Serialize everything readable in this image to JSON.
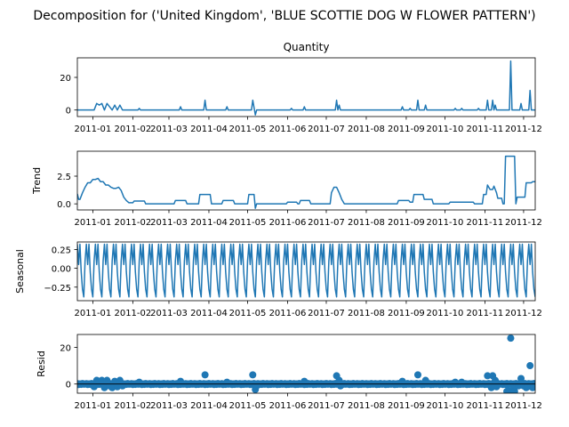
{
  "chart_data": {
    "type": "line",
    "suptitle": "Decomposition for ('United Kingdom', 'BLUE SCOTTIE DOG W FLOWER PATTERN')",
    "line_color": "#1f77b4",
    "x_ticks": [
      "2011-01",
      "2011-02",
      "2011-03",
      "2011-04",
      "2011-05",
      "2011-06",
      "2011-07",
      "2011-08",
      "2011-09",
      "2011-10",
      "2011-11",
      "2011-12"
    ],
    "x_domain": [
      "2010-12-20",
      "2011-12-10"
    ],
    "panels": [
      {
        "key": "observed",
        "title": "Quantity",
        "ylabel": "",
        "type": "line",
        "ylim": [
          -4,
          32
        ],
        "yticks": [
          {
            "v": 0,
            "label": "0"
          },
          {
            "v": 20,
            "label": "20"
          }
        ],
        "points": [
          [
            "2010-12-20",
            0
          ],
          [
            "2011-01-02",
            0
          ],
          [
            "2011-01-04",
            4
          ],
          [
            "2011-01-06",
            3
          ],
          [
            "2011-01-08",
            4
          ],
          [
            "2011-01-10",
            0
          ],
          [
            "2011-01-12",
            4
          ],
          [
            "2011-01-16",
            0
          ],
          [
            "2011-01-18",
            3
          ],
          [
            "2011-01-20",
            0
          ],
          [
            "2011-01-22",
            3
          ],
          [
            "2011-01-24",
            0
          ],
          [
            "2011-02-05",
            0
          ],
          [
            "2011-02-06",
            1
          ],
          [
            "2011-02-07",
            0
          ],
          [
            "2011-03-09",
            0
          ],
          [
            "2011-03-10",
            2
          ],
          [
            "2011-03-11",
            0
          ],
          [
            "2011-03-28",
            0
          ],
          [
            "2011-03-29",
            6
          ],
          [
            "2011-03-30",
            0
          ],
          [
            "2011-04-14",
            0
          ],
          [
            "2011-04-15",
            2
          ],
          [
            "2011-04-16",
            0
          ],
          [
            "2011-05-04",
            0
          ],
          [
            "2011-05-05",
            6
          ],
          [
            "2011-05-07",
            -3
          ],
          [
            "2011-05-08",
            0
          ],
          [
            "2011-06-03",
            0
          ],
          [
            "2011-06-04",
            1
          ],
          [
            "2011-06-05",
            0
          ],
          [
            "2011-06-13",
            0
          ],
          [
            "2011-06-14",
            2
          ],
          [
            "2011-06-15",
            0
          ],
          [
            "2011-07-08",
            0
          ],
          [
            "2011-07-09",
            6
          ],
          [
            "2011-07-10",
            0
          ],
          [
            "2011-07-11",
            3
          ],
          [
            "2011-07-12",
            0
          ],
          [
            "2011-08-28",
            0
          ],
          [
            "2011-08-29",
            2
          ],
          [
            "2011-08-30",
            0
          ],
          [
            "2011-09-03",
            0
          ],
          [
            "2011-09-04",
            1
          ],
          [
            "2011-09-05",
            0
          ],
          [
            "2011-09-09",
            0
          ],
          [
            "2011-09-10",
            6
          ],
          [
            "2011-09-11",
            0
          ],
          [
            "2011-09-15",
            0
          ],
          [
            "2011-09-16",
            3
          ],
          [
            "2011-09-17",
            0
          ],
          [
            "2011-10-08",
            0
          ],
          [
            "2011-10-09",
            1
          ],
          [
            "2011-10-10",
            0
          ],
          [
            "2011-10-13",
            0
          ],
          [
            "2011-10-14",
            1
          ],
          [
            "2011-10-15",
            0
          ],
          [
            "2011-10-26",
            0
          ],
          [
            "2011-10-27",
            1
          ],
          [
            "2011-10-28",
            0
          ],
          [
            "2011-11-02",
            0
          ],
          [
            "2011-11-03",
            6
          ],
          [
            "2011-11-04",
            0
          ],
          [
            "2011-11-06",
            0
          ],
          [
            "2011-11-07",
            6
          ],
          [
            "2011-11-08",
            0
          ],
          [
            "2011-11-09",
            3
          ],
          [
            "2011-11-10",
            0
          ],
          [
            "2011-11-20",
            0
          ],
          [
            "2011-11-21",
            30
          ],
          [
            "2011-11-22",
            0
          ],
          [
            "2011-11-28",
            0
          ],
          [
            "2011-11-29",
            4
          ],
          [
            "2011-11-30",
            0
          ],
          [
            "2011-12-05",
            0
          ],
          [
            "2011-12-06",
            12
          ],
          [
            "2011-12-07",
            0
          ],
          [
            "2011-12-10",
            0
          ]
        ]
      },
      {
        "key": "trend",
        "title": "",
        "ylabel": "Trend",
        "type": "line",
        "ylim": [
          -0.55,
          4.75
        ],
        "yticks": [
          {
            "v": 0,
            "label": "0.0"
          },
          {
            "v": 2.5,
            "label": "2.5"
          }
        ],
        "points": [
          [
            "2010-12-20",
            0.9
          ],
          [
            "2010-12-21",
            0.4
          ],
          [
            "2010-12-22",
            0.4
          ],
          [
            "2010-12-24",
            1.0
          ],
          [
            "2010-12-26",
            1.5
          ],
          [
            "2010-12-28",
            1.9
          ],
          [
            "2010-12-30",
            1.9
          ],
          [
            "2011-01-01",
            2.2
          ],
          [
            "2011-01-03",
            2.2
          ],
          [
            "2011-01-05",
            2.3
          ],
          [
            "2011-01-07",
            2.0
          ],
          [
            "2011-01-09",
            2.0
          ],
          [
            "2011-01-11",
            1.7
          ],
          [
            "2011-01-13",
            1.7
          ],
          [
            "2011-01-15",
            1.5
          ],
          [
            "2011-01-17",
            1.4
          ],
          [
            "2011-01-19",
            1.4
          ],
          [
            "2011-01-21",
            1.5
          ],
          [
            "2011-01-23",
            1.2
          ],
          [
            "2011-01-25",
            0.6
          ],
          [
            "2011-01-27",
            0.3
          ],
          [
            "2011-01-29",
            0.1
          ],
          [
            "2011-02-01",
            0.1
          ],
          [
            "2011-02-02",
            0.25
          ],
          [
            "2011-02-10",
            0.25
          ],
          [
            "2011-02-11",
            0.0
          ],
          [
            "2011-03-05",
            0.0
          ],
          [
            "2011-03-06",
            0.3
          ],
          [
            "2011-03-14",
            0.3
          ],
          [
            "2011-03-15",
            0.0
          ],
          [
            "2011-03-24",
            0.0
          ],
          [
            "2011-03-25",
            0.85
          ],
          [
            "2011-04-02",
            0.85
          ],
          [
            "2011-04-03",
            0.0
          ],
          [
            "2011-04-11",
            0.0
          ],
          [
            "2011-04-12",
            0.3
          ],
          [
            "2011-04-20",
            0.3
          ],
          [
            "2011-04-21",
            0.0
          ],
          [
            "2011-05-01",
            0.0
          ],
          [
            "2011-05-02",
            0.85
          ],
          [
            "2011-05-06",
            0.85
          ],
          [
            "2011-05-07",
            -0.4
          ],
          [
            "2011-05-08",
            0.0
          ],
          [
            "2011-05-31",
            0.0
          ],
          [
            "2011-06-01",
            0.15
          ],
          [
            "2011-06-08",
            0.15
          ],
          [
            "2011-06-09",
            0.0
          ],
          [
            "2011-06-10",
            0.0
          ],
          [
            "2011-06-11",
            0.3
          ],
          [
            "2011-06-18",
            0.3
          ],
          [
            "2011-06-19",
            0.0
          ],
          [
            "2011-07-04",
            0.0
          ],
          [
            "2011-07-05",
            1.0
          ],
          [
            "2011-07-07",
            1.5
          ],
          [
            "2011-07-09",
            1.5
          ],
          [
            "2011-07-11",
            1.0
          ],
          [
            "2011-07-13",
            0.4
          ],
          [
            "2011-07-15",
            0.0
          ],
          [
            "2011-08-25",
            0.0
          ],
          [
            "2011-08-26",
            0.3
          ],
          [
            "2011-09-03",
            0.3
          ],
          [
            "2011-09-04",
            0.15
          ],
          [
            "2011-09-06",
            0.15
          ],
          [
            "2011-09-07",
            0.85
          ],
          [
            "2011-09-14",
            0.85
          ],
          [
            "2011-09-15",
            0.4
          ],
          [
            "2011-09-21",
            0.4
          ],
          [
            "2011-09-22",
            0.0
          ],
          [
            "2011-10-04",
            0.0
          ],
          [
            "2011-10-05",
            0.15
          ],
          [
            "2011-10-20",
            0.15
          ],
          [
            "2011-10-23",
            0.15
          ],
          [
            "2011-10-24",
            0.0
          ],
          [
            "2011-10-30",
            0.0
          ],
          [
            "2011-10-31",
            0.85
          ],
          [
            "2011-11-02",
            0.85
          ],
          [
            "2011-11-03",
            1.7
          ],
          [
            "2011-11-05",
            1.3
          ],
          [
            "2011-11-07",
            1.3
          ],
          [
            "2011-11-08",
            1.6
          ],
          [
            "2011-11-10",
            1.0
          ],
          [
            "2011-11-11",
            0.5
          ],
          [
            "2011-11-14",
            0.5
          ],
          [
            "2011-11-15",
            0.0
          ],
          [
            "2011-11-16",
            0.0
          ],
          [
            "2011-11-17",
            4.3
          ],
          [
            "2011-11-24",
            4.3
          ],
          [
            "2011-11-25",
            0.0
          ],
          [
            "2011-11-26",
            0.6
          ],
          [
            "2011-12-02",
            0.6
          ],
          [
            "2011-12-03",
            1.9
          ],
          [
            "2011-12-07",
            1.9
          ],
          [
            "2011-12-08",
            2.0
          ],
          [
            "2011-12-10",
            2.0
          ]
        ]
      },
      {
        "key": "seasonal",
        "title": "",
        "ylabel": "Seasonal",
        "type": "line",
        "ylim": [
          -0.43,
          0.35
        ],
        "yticks": [
          {
            "v": 0.25,
            "label": "0.25"
          },
          {
            "v": 0,
            "label": "0.00"
          },
          {
            "v": -0.25,
            "label": "−0.25"
          }
        ],
        "period_days": 7,
        "weekly_pattern": [
          0.32,
          0.05,
          0.32,
          -0.05,
          -0.28,
          -0.38,
          0.1
        ]
      },
      {
        "key": "resid",
        "title": "",
        "ylabel": "Resid",
        "type": "scatter",
        "ylim": [
          -5,
          27
        ],
        "yticks": [
          {
            "v": 0,
            "label": "0"
          },
          {
            "v": 20,
            "label": "20"
          }
        ],
        "points": [
          [
            "2011-01-02",
            -1.5
          ],
          [
            "2011-01-04",
            2
          ],
          [
            "2011-01-06",
            1.5
          ],
          [
            "2011-01-08",
            2
          ],
          [
            "2011-01-10",
            -2
          ],
          [
            "2011-01-12",
            2
          ],
          [
            "2011-01-14",
            -1
          ],
          [
            "2011-01-16",
            -2
          ],
          [
            "2011-01-18",
            1.5
          ],
          [
            "2011-01-20",
            -1.5
          ],
          [
            "2011-01-22",
            2
          ],
          [
            "2011-01-24",
            -1
          ],
          [
            "2011-02-06",
            1
          ],
          [
            "2011-03-10",
            1.5
          ],
          [
            "2011-03-29",
            5
          ],
          [
            "2011-04-15",
            1
          ],
          [
            "2011-05-05",
            5
          ],
          [
            "2011-05-07",
            -3
          ],
          [
            "2011-05-08",
            -1
          ],
          [
            "2011-06-14",
            1.5
          ],
          [
            "2011-07-09",
            4.5
          ],
          [
            "2011-07-11",
            2
          ],
          [
            "2011-07-12",
            -1
          ],
          [
            "2011-08-29",
            1.5
          ],
          [
            "2011-09-10",
            5
          ],
          [
            "2011-09-16",
            2
          ],
          [
            "2011-10-09",
            1
          ],
          [
            "2011-10-14",
            1
          ],
          [
            "2011-11-03",
            4.5
          ],
          [
            "2011-11-06",
            -2
          ],
          [
            "2011-11-07",
            4.5
          ],
          [
            "2011-11-09",
            2
          ],
          [
            "2011-11-10",
            -1.5
          ],
          [
            "2011-11-18",
            -4
          ],
          [
            "2011-11-19",
            -3.5
          ],
          [
            "2011-11-20",
            -4
          ],
          [
            "2011-11-21",
            25
          ],
          [
            "2011-11-22",
            -4
          ],
          [
            "2011-11-23",
            -3
          ],
          [
            "2011-11-24",
            -4
          ],
          [
            "2011-11-27",
            -1
          ],
          [
            "2011-11-29",
            3
          ],
          [
            "2011-12-01",
            -1
          ],
          [
            "2011-12-03",
            -2
          ],
          [
            "2011-12-04",
            -1.5
          ],
          [
            "2011-12-06",
            10
          ],
          [
            "2011-12-08",
            -2
          ],
          [
            "2011-12-09",
            -1.5
          ]
        ]
      }
    ]
  }
}
